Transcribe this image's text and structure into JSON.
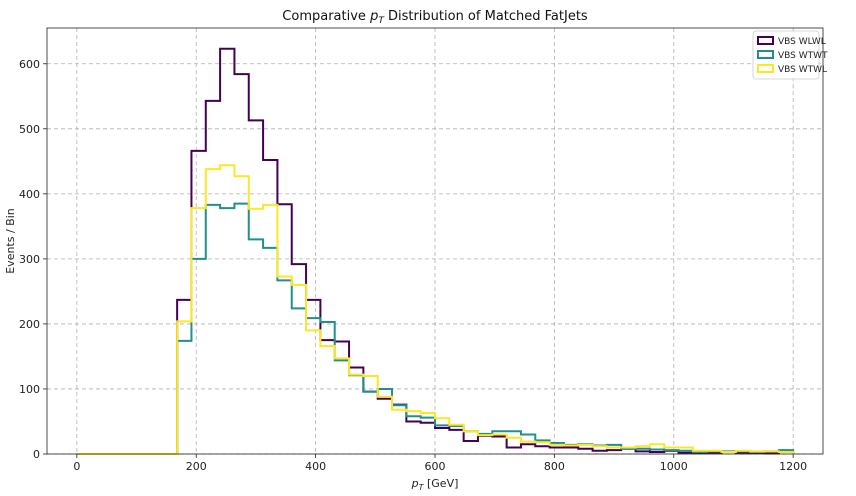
{
  "chart_data": {
    "type": "step-histogram",
    "title_prefix": "Comparative ",
    "title_var": "p",
    "title_sub": "T",
    "title_suffix": " Distribution of Matched FatJets",
    "xlabel_var": "p",
    "xlabel_sub": "T",
    "xlabel_suffix": " [GeV]",
    "ylabel": "Events / Bin",
    "xlim": [
      -50,
      1250
    ],
    "ylim": [
      0,
      655
    ],
    "xticks": [
      0,
      200,
      400,
      600,
      800,
      1000,
      1200
    ],
    "yticks": [
      0,
      100,
      200,
      300,
      400,
      500,
      600
    ],
    "grid": true,
    "legend_position": "top-right",
    "bin_edges": [
      0,
      24,
      48,
      72,
      96,
      120,
      144,
      168,
      192,
      216,
      240,
      264,
      288,
      312,
      336,
      360,
      384,
      408,
      432,
      456,
      480,
      504,
      528,
      552,
      576,
      600,
      624,
      648,
      672,
      696,
      720,
      744,
      768,
      792,
      816,
      840,
      864,
      888,
      912,
      936,
      960,
      984,
      1008,
      1032,
      1056,
      1080,
      1104,
      1128,
      1152,
      1176,
      1200
    ],
    "series": [
      {
        "name": "VBS WLWL",
        "color": "#440154",
        "values": [
          0,
          0,
          0,
          0,
          0,
          0,
          0,
          237,
          466,
          543,
          623,
          584,
          513,
          452,
          384,
          292,
          237,
          175,
          173,
          133,
          96,
          85,
          76,
          50,
          48,
          40,
          37,
          20,
          28,
          27,
          10,
          15,
          12,
          10,
          10,
          8,
          5,
          6,
          8,
          4,
          3,
          5,
          2,
          2,
          2,
          3,
          2,
          2,
          1,
          3
        ]
      },
      {
        "name": "VBS WTWT",
        "color": "#21908d",
        "values": [
          0,
          0,
          0,
          0,
          0,
          0,
          0,
          174,
          300,
          383,
          378,
          385,
          330,
          317,
          267,
          224,
          209,
          203,
          144,
          121,
          96,
          100,
          75,
          58,
          56,
          44,
          43,
          35,
          31,
          35,
          35,
          30,
          21,
          17,
          14,
          15,
          13,
          14,
          8,
          8,
          7,
          6,
          5,
          3,
          4,
          4,
          4,
          3,
          4,
          6
        ]
      },
      {
        "name": "VBS WTWL",
        "color": "#fde725",
        "values": [
          0,
          0,
          0,
          0,
          0,
          0,
          0,
          204,
          378,
          438,
          444,
          427,
          377,
          383,
          273,
          260,
          190,
          166,
          147,
          122,
          120,
          88,
          68,
          66,
          63,
          55,
          45,
          35,
          29,
          30,
          25,
          19,
          18,
          14,
          13,
          14,
          12,
          10,
          10,
          12,
          15,
          10,
          10,
          5,
          5,
          3,
          5,
          4,
          4,
          3
        ]
      }
    ]
  }
}
